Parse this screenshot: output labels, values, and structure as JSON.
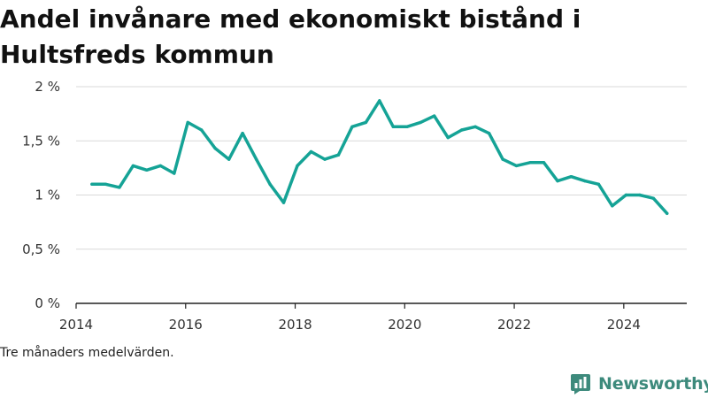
{
  "title": "Andel invånare med ekonomiskt bistånd i Hultsfreds kommun",
  "caption": "Tre månaders medelvärden.",
  "brand": {
    "name": "Newsworthy",
    "icon": "newsworthy-logo-icon",
    "color": "#3d8a7c"
  },
  "colors": {
    "line": "#15a396",
    "grid": "#d9d9d9",
    "axis": "#222222"
  },
  "chart_data": {
    "type": "line",
    "title": "Andel invånare med ekonomiskt bistånd i Hultsfreds kommun",
    "xlabel": "",
    "ylabel": "",
    "xlim": [
      2014.0,
      2025.15
    ],
    "ylim": [
      0,
      2
    ],
    "x_ticks": [
      2014,
      2016,
      2018,
      2020,
      2022,
      2024
    ],
    "x_tick_labels": [
      "2014",
      "2016",
      "2018",
      "2020",
      "2022",
      "2024"
    ],
    "y_ticks": [
      0,
      0.5,
      1,
      1.5,
      2
    ],
    "y_tick_labels": [
      "0 %",
      "0,5 %",
      "1 %",
      "1,5 %",
      "2 %"
    ],
    "grid": "horizontal",
    "legend": "none",
    "series": [
      {
        "x": [
          2014.29,
          2014.54,
          2014.79,
          2015.04,
          2015.29,
          2015.54,
          2015.79,
          2016.04,
          2016.29,
          2016.54,
          2016.79,
          2017.04,
          2017.29,
          2017.54,
          2017.79,
          2018.04,
          2018.29,
          2018.54,
          2018.79,
          2019.04,
          2019.29,
          2019.54,
          2019.79,
          2020.04,
          2020.29,
          2020.54,
          2020.79,
          2021.04,
          2021.29,
          2021.54,
          2021.79,
          2022.04,
          2022.29,
          2022.54,
          2022.79,
          2023.04,
          2023.29,
          2023.54,
          2023.79,
          2024.04,
          2024.29,
          2024.54,
          2024.79
        ],
        "values": [
          1.1,
          1.1,
          1.07,
          1.27,
          1.23,
          1.27,
          1.2,
          1.67,
          1.6,
          1.43,
          1.33,
          1.57,
          1.33,
          1.1,
          0.93,
          1.27,
          1.4,
          1.33,
          1.37,
          1.63,
          1.67,
          1.87,
          1.63,
          1.63,
          1.67,
          1.73,
          1.53,
          1.6,
          1.63,
          1.57,
          1.33,
          1.27,
          1.3,
          1.3,
          1.13,
          1.17,
          1.13,
          1.1,
          0.9,
          1.0,
          1.0,
          0.97,
          0.83
        ]
      }
    ]
  }
}
